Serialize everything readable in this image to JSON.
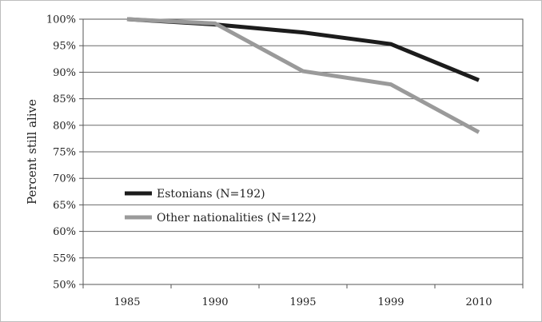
{
  "chart_data": {
    "type": "line",
    "title": "",
    "xlabel": "",
    "ylabel": "Percent still alive",
    "categories": [
      "1985",
      "1990",
      "1995",
      "1999",
      "2010"
    ],
    "y_ticks": [
      "50%",
      "55%",
      "60%",
      "65%",
      "70%",
      "75%",
      "80%",
      "85%",
      "90%",
      "95%",
      "100%"
    ],
    "ylim": [
      50,
      100
    ],
    "grid": true,
    "legend_position": "left-middle inside plot",
    "series": [
      {
        "name": "Estonians (N=192)",
        "values": [
          100,
          99.0,
          97.5,
          95.3,
          88.5
        ],
        "color": "#1c1c1c"
      },
      {
        "name": "Other nationalities (N=122)",
        "values": [
          100,
          99.2,
          90.2,
          87.7,
          78.7
        ],
        "color": "#9a9a9a"
      }
    ]
  }
}
